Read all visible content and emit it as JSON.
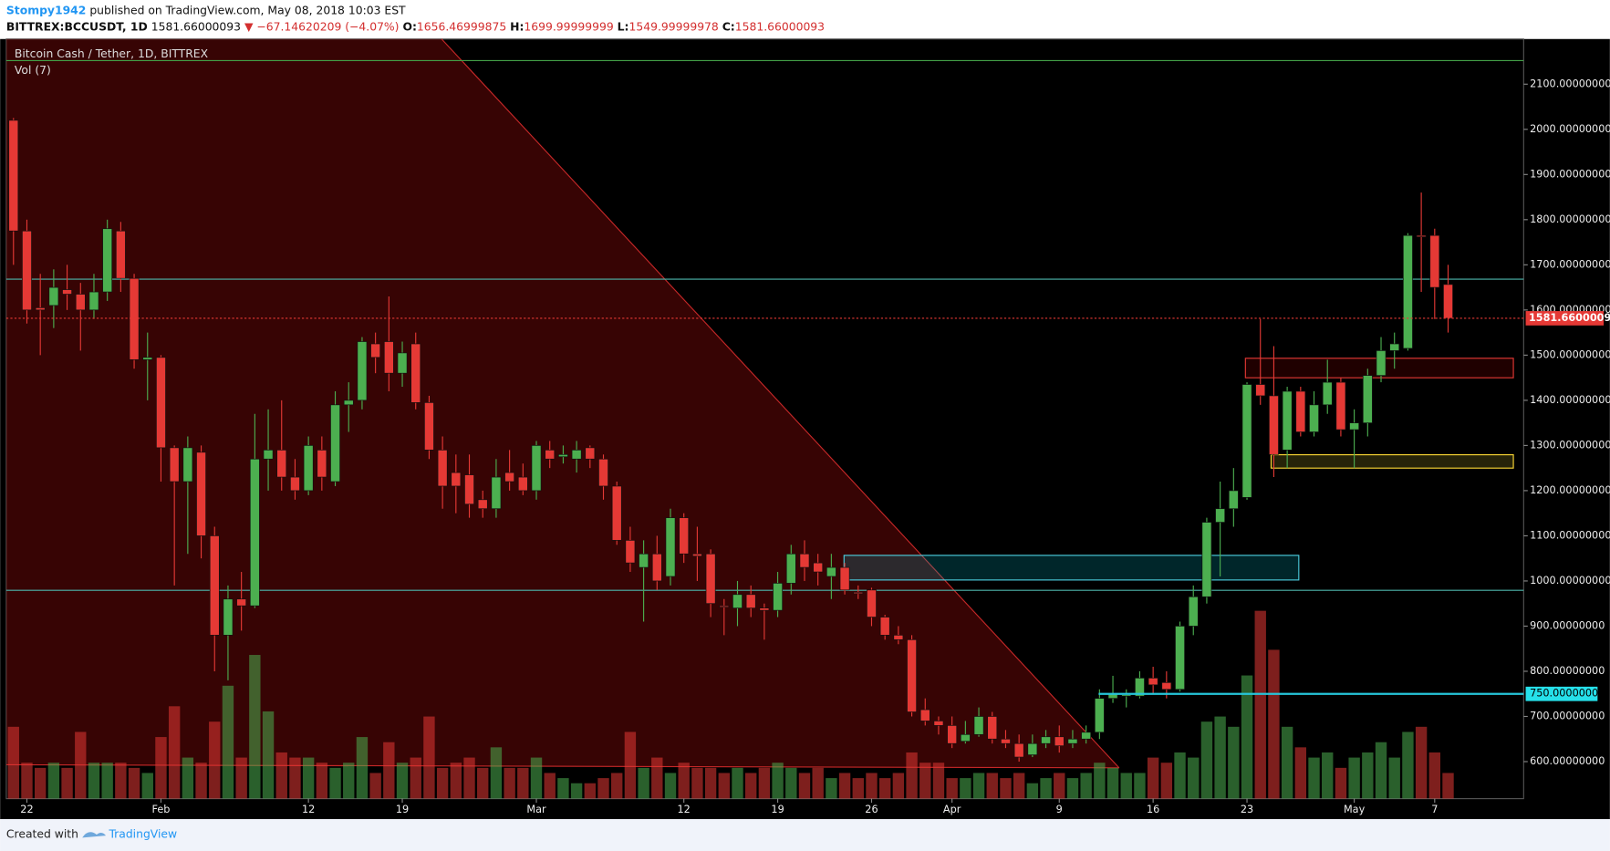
{
  "header": {
    "author": "Stompy1942",
    "published": "published on TradingView.com, May 08, 2018 10:03 EST",
    "symbol": "BITTREX:BCCUSDT, 1D",
    "last": "1581.66000093",
    "change": "▼ −67.14620209 (−4.07%)",
    "ohlc": [
      {
        "key": "O:",
        "value": "1656.46999875"
      },
      {
        "key": "H:",
        "value": "1699.99999999"
      },
      {
        "key": "L:",
        "value": "1549.99999978"
      },
      {
        "key": "C:",
        "value": "1581.66000093"
      }
    ]
  },
  "chart_data": {
    "type": "candlestick",
    "title": "Bitcoin Cash / Tether, 1D, BITTREX",
    "volume_label": "Vol (7)",
    "up_color": "#4caf50",
    "down_color": "#e53935",
    "categories": [
      null,
      "22",
      null,
      null,
      null,
      null,
      null,
      null,
      null,
      null,
      null,
      "Feb",
      null,
      null,
      null,
      null,
      null,
      null,
      null,
      null,
      null,
      null,
      "12",
      null,
      null,
      null,
      null,
      null,
      null,
      "19",
      null,
      null,
      null,
      null,
      null,
      null,
      null,
      null,
      null,
      "Mar",
      null,
      null,
      null,
      null,
      null,
      null,
      null,
      null,
      null,
      null,
      "12",
      null,
      null,
      null,
      null,
      null,
      null,
      "19",
      null,
      null,
      null,
      null,
      null,
      null,
      "26",
      null,
      null,
      null,
      null,
      null,
      "Apr",
      null,
      null,
      null,
      null,
      null,
      null,
      null,
      "9",
      null,
      null,
      null,
      null,
      null,
      null,
      "16",
      null,
      null,
      null,
      null,
      null,
      null,
      "23",
      null,
      null,
      null,
      null,
      null,
      null,
      null,
      "May",
      null,
      null,
      null,
      null,
      null,
      "7",
      null
    ],
    "open": [
      2020,
      1775,
      1605,
      1610,
      1645,
      1635,
      1600,
      1640,
      1775,
      1670,
      1490,
      1495,
      1295,
      1220,
      1285,
      1100,
      880,
      960,
      945,
      1270,
      1290,
      1230,
      1200,
      1290,
      1220,
      1390,
      1400,
      1525,
      1530,
      1460,
      1525,
      1395,
      1290,
      1240,
      1235,
      1180,
      1160,
      1240,
      1230,
      1200,
      1290,
      1275,
      1270,
      1295,
      1270,
      1210,
      1090,
      1030,
      1060,
      1010,
      1140,
      1060,
      1060,
      945,
      940,
      970,
      940,
      935,
      995,
      1060,
      1040,
      1010,
      1030,
      975,
      980,
      920,
      880,
      870,
      715,
      690,
      680,
      645,
      660,
      700,
      650,
      640,
      615,
      640,
      655,
      640,
      650,
      665,
      740,
      745,
      745,
      785,
      775,
      760,
      900,
      965,
      1130,
      1160,
      1185,
      1435,
      1410,
      1290,
      1420,
      1330,
      1390,
      1440,
      1335,
      1350,
      1455,
      1510,
      1515,
      1765,
      1765,
      1656.46999875
    ],
    "high": [
      2025,
      1800,
      1680,
      1690,
      1700,
      1660,
      1680,
      1800,
      1795,
      1680,
      1550,
      1500,
      1300,
      1320,
      1300,
      1120,
      990,
      1020,
      1370,
      1380,
      1400,
      1270,
      1320,
      1320,
      1420,
      1440,
      1540,
      1550,
      1630,
      1530,
      1550,
      1410,
      1320,
      1280,
      1280,
      1200,
      1270,
      1290,
      1260,
      1310,
      1310,
      1300,
      1310,
      1300,
      1280,
      1220,
      1120,
      1090,
      1100,
      1160,
      1150,
      1120,
      1070,
      960,
      1000,
      990,
      950,
      1020,
      1080,
      1090,
      1060,
      1060,
      1040,
      990,
      985,
      925,
      900,
      880,
      740,
      700,
      700,
      690,
      720,
      710,
      670,
      660,
      660,
      670,
      680,
      670,
      680,
      760,
      790,
      760,
      800,
      810,
      800,
      910,
      990,
      1140,
      1220,
      1250,
      1440,
      1580,
      1520,
      1430,
      1430,
      1420,
      1490,
      1450,
      1380,
      1470,
      1540,
      1550,
      1770,
      1860,
      1780,
      1699.99999999
    ],
    "low": [
      1700,
      1570,
      1500,
      1560,
      1600,
      1510,
      1580,
      1620,
      1640,
      1470,
      1400,
      1220,
      990,
      1060,
      1050,
      800,
      780,
      890,
      940,
      1200,
      1200,
      1180,
      1190,
      1200,
      1210,
      1330,
      1380,
      1460,
      1420,
      1430,
      1380,
      1270,
      1160,
      1150,
      1140,
      1140,
      1140,
      1200,
      1190,
      1180,
      1250,
      1260,
      1240,
      1250,
      1180,
      1080,
      1020,
      910,
      980,
      990,
      1040,
      1000,
      920,
      880,
      900,
      920,
      870,
      920,
      970,
      1000,
      990,
      960,
      970,
      960,
      900,
      870,
      860,
      700,
      680,
      660,
      630,
      640,
      655,
      640,
      630,
      600,
      610,
      630,
      620,
      630,
      640,
      650,
      730,
      720,
      740,
      750,
      740,
      755,
      880,
      950,
      1010,
      1120,
      1180,
      1390,
      1230,
      1250,
      1320,
      1320,
      1370,
      1320,
      1250,
      1320,
      1440,
      1470,
      1510,
      1640,
      1580,
      1549.99999978
    ],
    "close": [
      1775,
      1600,
      1600,
      1650,
      1635,
      1600,
      1640,
      1780,
      1670,
      1490,
      1495,
      1295,
      1220,
      1295,
      1100,
      880,
      960,
      945,
      1270,
      1290,
      1230,
      1200,
      1300,
      1230,
      1390,
      1400,
      1530,
      1495,
      1460,
      1505,
      1395,
      1290,
      1210,
      1210,
      1170,
      1160,
      1230,
      1220,
      1200,
      1300,
      1270,
      1280,
      1290,
      1270,
      1210,
      1090,
      1040,
      1060,
      1000,
      1140,
      1060,
      1055,
      950,
      942,
      970,
      940,
      935,
      995,
      1060,
      1030,
      1020,
      1030,
      980,
      972,
      920,
      880,
      870,
      710,
      690,
      680,
      640,
      660,
      700,
      650,
      640,
      610,
      640,
      655,
      635,
      650,
      665,
      740,
      750,
      748,
      785,
      770,
      760,
      900,
      965,
      1130,
      1160,
      1200,
      1435,
      1410,
      1280,
      1420,
      1330,
      1390,
      1440,
      1335,
      1350,
      1455,
      1510,
      1525,
      1765,
      1762,
      1650,
      1581.66000093
    ],
    "volume": [
      70,
      35,
      30,
      35,
      30,
      65,
      35,
      35,
      35,
      30,
      25,
      60,
      90,
      40,
      35,
      75,
      110,
      40,
      140,
      85,
      45,
      40,
      40,
      35,
      30,
      35,
      60,
      25,
      55,
      35,
      40,
      80,
      30,
      35,
      40,
      30,
      50,
      30,
      30,
      40,
      25,
      20,
      15,
      15,
      20,
      25,
      65,
      30,
      40,
      25,
      35,
      30,
      30,
      25,
      30,
      25,
      30,
      35,
      30,
      25,
      30,
      20,
      25,
      20,
      25,
      20,
      25,
      45,
      35,
      35,
      20,
      20,
      25,
      25,
      20,
      25,
      15,
      20,
      25,
      20,
      25,
      35,
      30,
      25,
      25,
      40,
      35,
      45,
      40,
      75,
      80,
      70,
      120,
      183,
      145,
      70,
      50,
      40,
      45,
      30,
      40,
      45,
      55,
      40,
      65,
      70,
      45,
      25
    ],
    "ylim": [
      518,
      2200
    ],
    "yticks": [
      {
        "value": 600,
        "label": "600.00000000"
      },
      {
        "value": 700,
        "label": "700.00000000"
      },
      {
        "value": 800,
        "label": "800.00000000"
      },
      {
        "value": 900,
        "label": "900.00000000"
      },
      {
        "value": 1000,
        "label": "1000.00000000"
      },
      {
        "value": 1100,
        "label": "1100.00000000"
      },
      {
        "value": 1200,
        "label": "1200.00000000"
      },
      {
        "value": 1300,
        "label": "1300.00000000"
      },
      {
        "value": 1400,
        "label": "1400.00000000"
      },
      {
        "value": 1500,
        "label": "1500.00000000"
      },
      {
        "value": 1600,
        "label": "1600.00000000"
      },
      {
        "value": 1700,
        "label": "1700.00000000"
      },
      {
        "value": 1800,
        "label": "1800.00000000"
      },
      {
        "value": 1900,
        "label": "1900.00000000"
      },
      {
        "value": 2000,
        "label": "2000.00000000"
      },
      {
        "value": 2100,
        "label": "2100.00000000"
      }
    ],
    "last_price": {
      "value": 1581.66000093,
      "label": "1581.66000093"
    },
    "level": {
      "value": 750,
      "label": "750.00000000"
    }
  },
  "footer": {
    "created": "Created with",
    "brand": "TradingView"
  }
}
